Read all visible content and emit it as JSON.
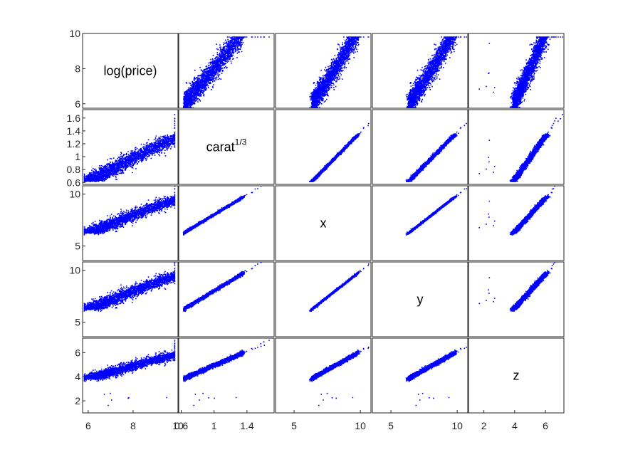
{
  "chart_data": {
    "type": "scatter",
    "layout": "scatter-matrix",
    "marker_color": "#0000ff",
    "variables": [
      {
        "key": "lp",
        "label": "log(price)",
        "label_sup": "",
        "range": [
          5.75,
          10.0
        ],
        "ticks": [
          6,
          8,
          10
        ],
        "tick_labels": [
          "6",
          "8",
          "10"
        ]
      },
      {
        "key": "c",
        "label": "carat",
        "label_sup": "1/3",
        "range": [
          0.57,
          1.73
        ],
        "ticks": [
          0.6,
          1,
          1.4
        ],
        "tick_labels": [
          "0.6",
          "1",
          "1.4"
        ],
        "y_ticks": [
          0.6,
          0.8,
          1,
          1.2,
          1.4,
          1.6
        ],
        "y_tick_labels": [
          "0.6",
          "0.8",
          "1",
          "1.2",
          "1.4",
          "1.6"
        ]
      },
      {
        "key": "x",
        "label": "x",
        "label_sup": "",
        "range": [
          3.6,
          10.8
        ],
        "ticks": [
          5,
          10
        ],
        "tick_labels": [
          "5",
          "10"
        ]
      },
      {
        "key": "y",
        "label": "y",
        "label_sup": "",
        "range": [
          3.6,
          10.8
        ],
        "ticks": [
          5,
          10
        ],
        "tick_labels": [
          "5",
          "10"
        ]
      },
      {
        "key": "z",
        "label": "z",
        "label_sup": "",
        "range": [
          1.0,
          7.2
        ],
        "ticks": [
          2,
          4,
          6
        ],
        "tick_labels": [
          "2",
          "4",
          "6"
        ]
      }
    ],
    "x_tick_labels_shown": [
      [
        "6",
        "8",
        "10"
      ],
      [
        "0.6",
        "1",
        "1.4"
      ],
      [
        "5",
        "10"
      ],
      [
        "5",
        "10"
      ],
      [
        "2",
        "4",
        "6"
      ]
    ],
    "y_tick_labels_shown": [
      [
        "6",
        "8",
        "10"
      ],
      [
        "0.6",
        "0.8",
        "1",
        "1.2",
        "1.4",
        "1.6"
      ],
      [
        "5",
        "10"
      ],
      [
        "5",
        "10"
      ],
      [
        "2",
        "4",
        "6"
      ]
    ],
    "relationships": "all pairs strongly positively correlated; x, y, z, carat^(1/3) nearly linear in each other; log(price) capped near 9.8"
  }
}
